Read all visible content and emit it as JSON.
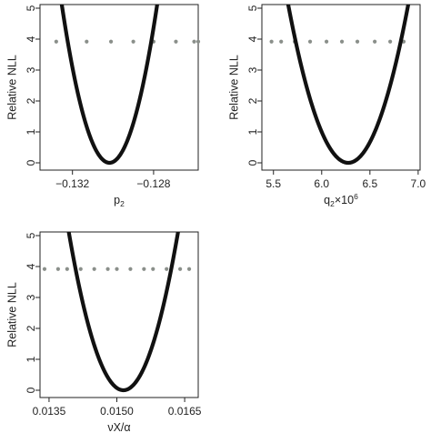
{
  "chart_data": [
    {
      "type": "line",
      "ylabel": "Relative NLL",
      "xlabel": {
        "main": "p",
        "sub": "2"
      },
      "xlim": [
        -0.1336,
        -0.1258
      ],
      "ylim": [
        0,
        5
      ],
      "xticks": [
        -0.132,
        -0.128
      ],
      "xtick_labels": [
        "-0.132",
        "-0.128"
      ],
      "yticks": [
        0,
        1,
        2,
        3,
        4,
        5
      ],
      "ytick_labels": [
        "0",
        "1",
        "2",
        "3",
        "4",
        "5"
      ],
      "curve": {
        "vertex_x": -0.1302,
        "min_y": 0,
        "x_at_y5": [
          -0.1325,
          -0.12785
        ],
        "color": "#111111"
      },
      "threshold": {
        "y": 3.92,
        "x": [
          -0.1328,
          -0.1313,
          -0.1301,
          -0.129,
          -0.128,
          -0.1269,
          -0.126,
          -0.1258
        ],
        "color": "#8a8f8a"
      }
    },
    {
      "type": "line",
      "ylabel": "Relative NLL",
      "xlabel": {
        "main": "q",
        "sub": "2",
        "suffix": "×10",
        "sup": "6"
      },
      "xlim": [
        5.38,
        7.02
      ],
      "ylim": [
        0,
        5
      ],
      "xticks": [
        5.5,
        6.0,
        6.5,
        7.0
      ],
      "xtick_labels": [
        "5.5",
        "6.0",
        "6.5",
        "7.0"
      ],
      "yticks": [
        0,
        1,
        2,
        3,
        4,
        5
      ],
      "ytick_labels": [
        "0",
        "1",
        "2",
        "3",
        "4",
        "5"
      ],
      "curve": {
        "vertex_x": 6.2,
        "min_y": 0,
        "x_at_y5": [
          5.66,
          6.89
        ],
        "color": "#111111"
      },
      "threshold": {
        "y": 3.92,
        "x": [
          5.48,
          5.58,
          5.72,
          5.88,
          6.05,
          6.21,
          6.37,
          6.55,
          6.71,
          6.85
        ],
        "color": "#8a8f8a"
      }
    },
    {
      "type": "line",
      "ylabel": "Relative NLL",
      "xlabel": {
        "main": "νX/α"
      },
      "xlim": [
        0.0133,
        0.0168
      ],
      "ylim": [
        0,
        5
      ],
      "xticks": [
        0.0135,
        0.015,
        0.0165
      ],
      "xtick_labels": [
        "0.0135",
        "0.0150",
        "0.0165"
      ],
      "yticks": [
        0,
        1,
        2,
        3,
        4,
        5
      ],
      "ytick_labels": [
        "0",
        "1",
        "2",
        "3",
        "4",
        "5"
      ],
      "curve": {
        "vertex_x": 0.015,
        "min_y": 0,
        "x_at_y5": [
          0.01395,
          0.01634
        ],
        "color": "#111111"
      },
      "threshold": {
        "y": 3.92,
        "x": [
          0.0134,
          0.0137,
          0.0139,
          0.0142,
          0.0145,
          0.0148,
          0.015,
          0.0153,
          0.0156,
          0.0158,
          0.0161,
          0.0164,
          0.0166
        ],
        "color": "#8a8f8a"
      }
    }
  ]
}
